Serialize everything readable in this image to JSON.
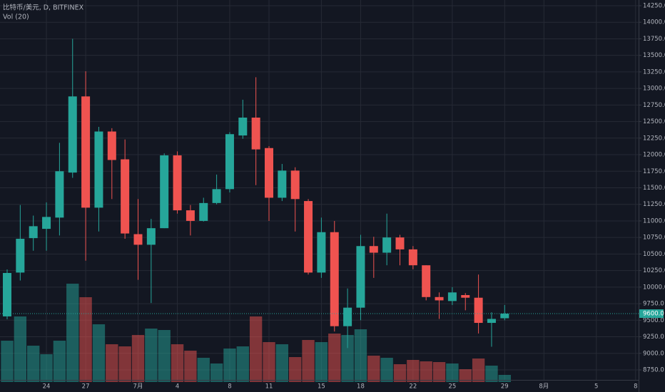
{
  "chart_data": {
    "type": "candlestick",
    "title": "比特币/美元, D, BITFINEX",
    "subtitle": "Vol (20)",
    "categories": [
      null,
      null,
      null,
      "24",
      null,
      null,
      "27",
      null,
      null,
      null,
      "7月",
      null,
      null,
      "4",
      null,
      null,
      null,
      "8",
      null,
      null,
      "11",
      null,
      null,
      null,
      "15",
      null,
      null,
      "18",
      null,
      null,
      null,
      "22",
      null,
      null,
      "25",
      null,
      null,
      null,
      "29",
      null,
      null,
      "8月",
      null,
      null,
      null,
      "5",
      null,
      null,
      "8"
    ],
    "open": [
      9558,
      10220,
      10740,
      10880,
      11050,
      11730,
      12880,
      11200,
      12350,
      11930,
      10800,
      10640,
      10890,
      11990,
      11160,
      11000,
      11270,
      11480,
      12290,
      12560,
      12100,
      11350,
      11760,
      11300,
      10220,
      10830,
      9410,
      9690,
      10620,
      10520,
      10750,
      10570,
      10330,
      9850,
      9790,
      9880,
      9840,
      9460,
      9530,
      null,
      null,
      null,
      null,
      null,
      null,
      null,
      null,
      null,
      null
    ],
    "high": [
      10268,
      11240,
      11080,
      11280,
      12180,
      13750,
      13260,
      12420,
      12400,
      12230,
      11330,
      11030,
      12020,
      12050,
      11240,
      11350,
      11700,
      12340,
      12830,
      13170,
      12130,
      11860,
      11810,
      11330,
      11050,
      11000,
      9980,
      10790,
      10760,
      11110,
      10790,
      10620,
      10330,
      9920,
      10000,
      9910,
      10190,
      9620,
      9730,
      null,
      null,
      null,
      null,
      null,
      null,
      null,
      null,
      null,
      null
    ],
    "low": [
      9515,
      10100,
      10550,
      10550,
      10780,
      11650,
      10400,
      10840,
      11330,
      10730,
      10110,
      9760,
      10890,
      11110,
      10780,
      10990,
      11250,
      11430,
      12240,
      11540,
      11000,
      11300,
      10840,
      10190,
      10140,
      9330,
      9080,
      9500,
      10140,
      10330,
      10330,
      10270,
      9800,
      9520,
      9730,
      9650,
      9300,
      9100,
      9500,
      null,
      null,
      null,
      null,
      null,
      null,
      null,
      null,
      null,
      null
    ],
    "close": [
      10214,
      10730,
      10920,
      11060,
      11750,
      12880,
      11200,
      12350,
      11920,
      10810,
      10640,
      10890,
      11990,
      11160,
      11000,
      11270,
      11480,
      12310,
      12560,
      12080,
      11350,
      11760,
      11330,
      10220,
      10830,
      9410,
      9690,
      10620,
      10520,
      10750,
      10570,
      10330,
      9850,
      9800,
      9920,
      9840,
      9460,
      9520,
      9600,
      null,
      null,
      null,
      null,
      null,
      null,
      null,
      null,
      null,
      null
    ],
    "volume": [
      58,
      92,
      51,
      39,
      58,
      138,
      119,
      81,
      53,
      50,
      66,
      75,
      73,
      53,
      44,
      34,
      26,
      47,
      50,
      92,
      56,
      53,
      35,
      59,
      56,
      68,
      66,
      74,
      37,
      34,
      25,
      31,
      29,
      28,
      26,
      18,
      33,
      23,
      10,
      null,
      null,
      null,
      null,
      null,
      null,
      null,
      null,
      null,
      null
    ],
    "up_color": "#26a69a",
    "down_color": "#ef5350",
    "ylim": [
      8610,
      14336
    ],
    "volume_ylim": [
      0,
      140
    ],
    "yticks": [
      {
        "value": 8750,
        "label": "8750.0"
      },
      {
        "value": 9000,
        "label": "9000.0"
      },
      {
        "value": 9250,
        "label": "9250.0"
      },
      {
        "value": 9500,
        "label": "9500.0"
      },
      {
        "value": 9750,
        "label": "9750.0"
      },
      {
        "value": 10000,
        "label": "10000.0"
      },
      {
        "value": 10250,
        "label": "10250.0"
      },
      {
        "value": 10500,
        "label": "10500.0"
      },
      {
        "value": 10750,
        "label": "10750.0"
      },
      {
        "value": 11000,
        "label": "11000.0"
      },
      {
        "value": 11250,
        "label": "11250.0"
      },
      {
        "value": 11500,
        "label": "11500.0"
      },
      {
        "value": 11750,
        "label": "11750.0"
      },
      {
        "value": 12000,
        "label": "12000.0"
      },
      {
        "value": 12250,
        "label": "12250.0"
      },
      {
        "value": 12500,
        "label": "12500.0"
      },
      {
        "value": 12750,
        "label": "12750.0"
      },
      {
        "value": 13000,
        "label": "13000.0"
      },
      {
        "value": 13250,
        "label": "13250.0"
      },
      {
        "value": 13500,
        "label": "13500.0"
      },
      {
        "value": 13750,
        "label": "13750.0"
      },
      {
        "value": 14000,
        "label": "14000.0"
      },
      {
        "value": 14250,
        "label": "14250.0"
      }
    ],
    "last_price": {
      "value": 9600,
      "label": "9600.0"
    },
    "grid": true
  }
}
